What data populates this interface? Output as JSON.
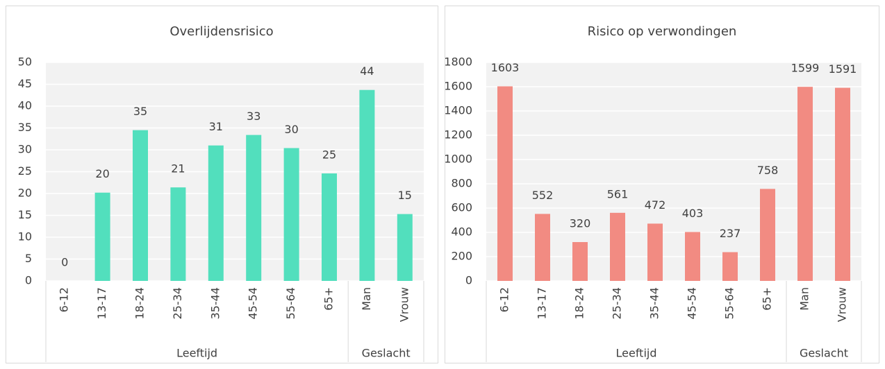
{
  "chart_data": [
    {
      "type": "bar",
      "title": "Overlijdensrisico",
      "groups": [
        {
          "name": "Leeftijd",
          "categories": [
            "6-12",
            "13-17",
            "18-24",
            "25-34",
            "35-44",
            "45-54",
            "55-64",
            "65+"
          ]
        },
        {
          "name": "Geslacht",
          "categories": [
            "Man",
            "Vrouw"
          ]
        }
      ],
      "values": [
        0,
        20.2,
        34.5,
        21.4,
        31,
        33.4,
        30.4,
        24.6,
        43.7,
        15.3
      ],
      "value_labels": [
        "0",
        "20",
        "35",
        "21",
        "31",
        "33",
        "30",
        "25",
        "44",
        "15"
      ],
      "color": "#52dfbd",
      "ylim": [
        0,
        50
      ],
      "yticks": [
        0,
        5,
        10,
        15,
        20,
        25,
        30,
        35,
        40,
        45,
        50
      ],
      "grid": true
    },
    {
      "type": "bar",
      "title": "Risico op verwondingen",
      "groups": [
        {
          "name": "Leeftijd",
          "categories": [
            "6-12",
            "13-17",
            "18-24",
            "25-34",
            "35-44",
            "45-54",
            "55-64",
            "65+"
          ]
        },
        {
          "name": "Geslacht",
          "categories": [
            "Man",
            "Vrouw"
          ]
        }
      ],
      "values": [
        1603,
        552,
        320,
        561,
        472,
        403,
        237,
        758,
        1599,
        1591
      ],
      "color": "#f28b82",
      "ylim": [
        0,
        1800
      ],
      "yticks": [
        0,
        200,
        400,
        600,
        800,
        1000,
        1200,
        1400,
        1600,
        1800
      ],
      "grid": true
    }
  ]
}
